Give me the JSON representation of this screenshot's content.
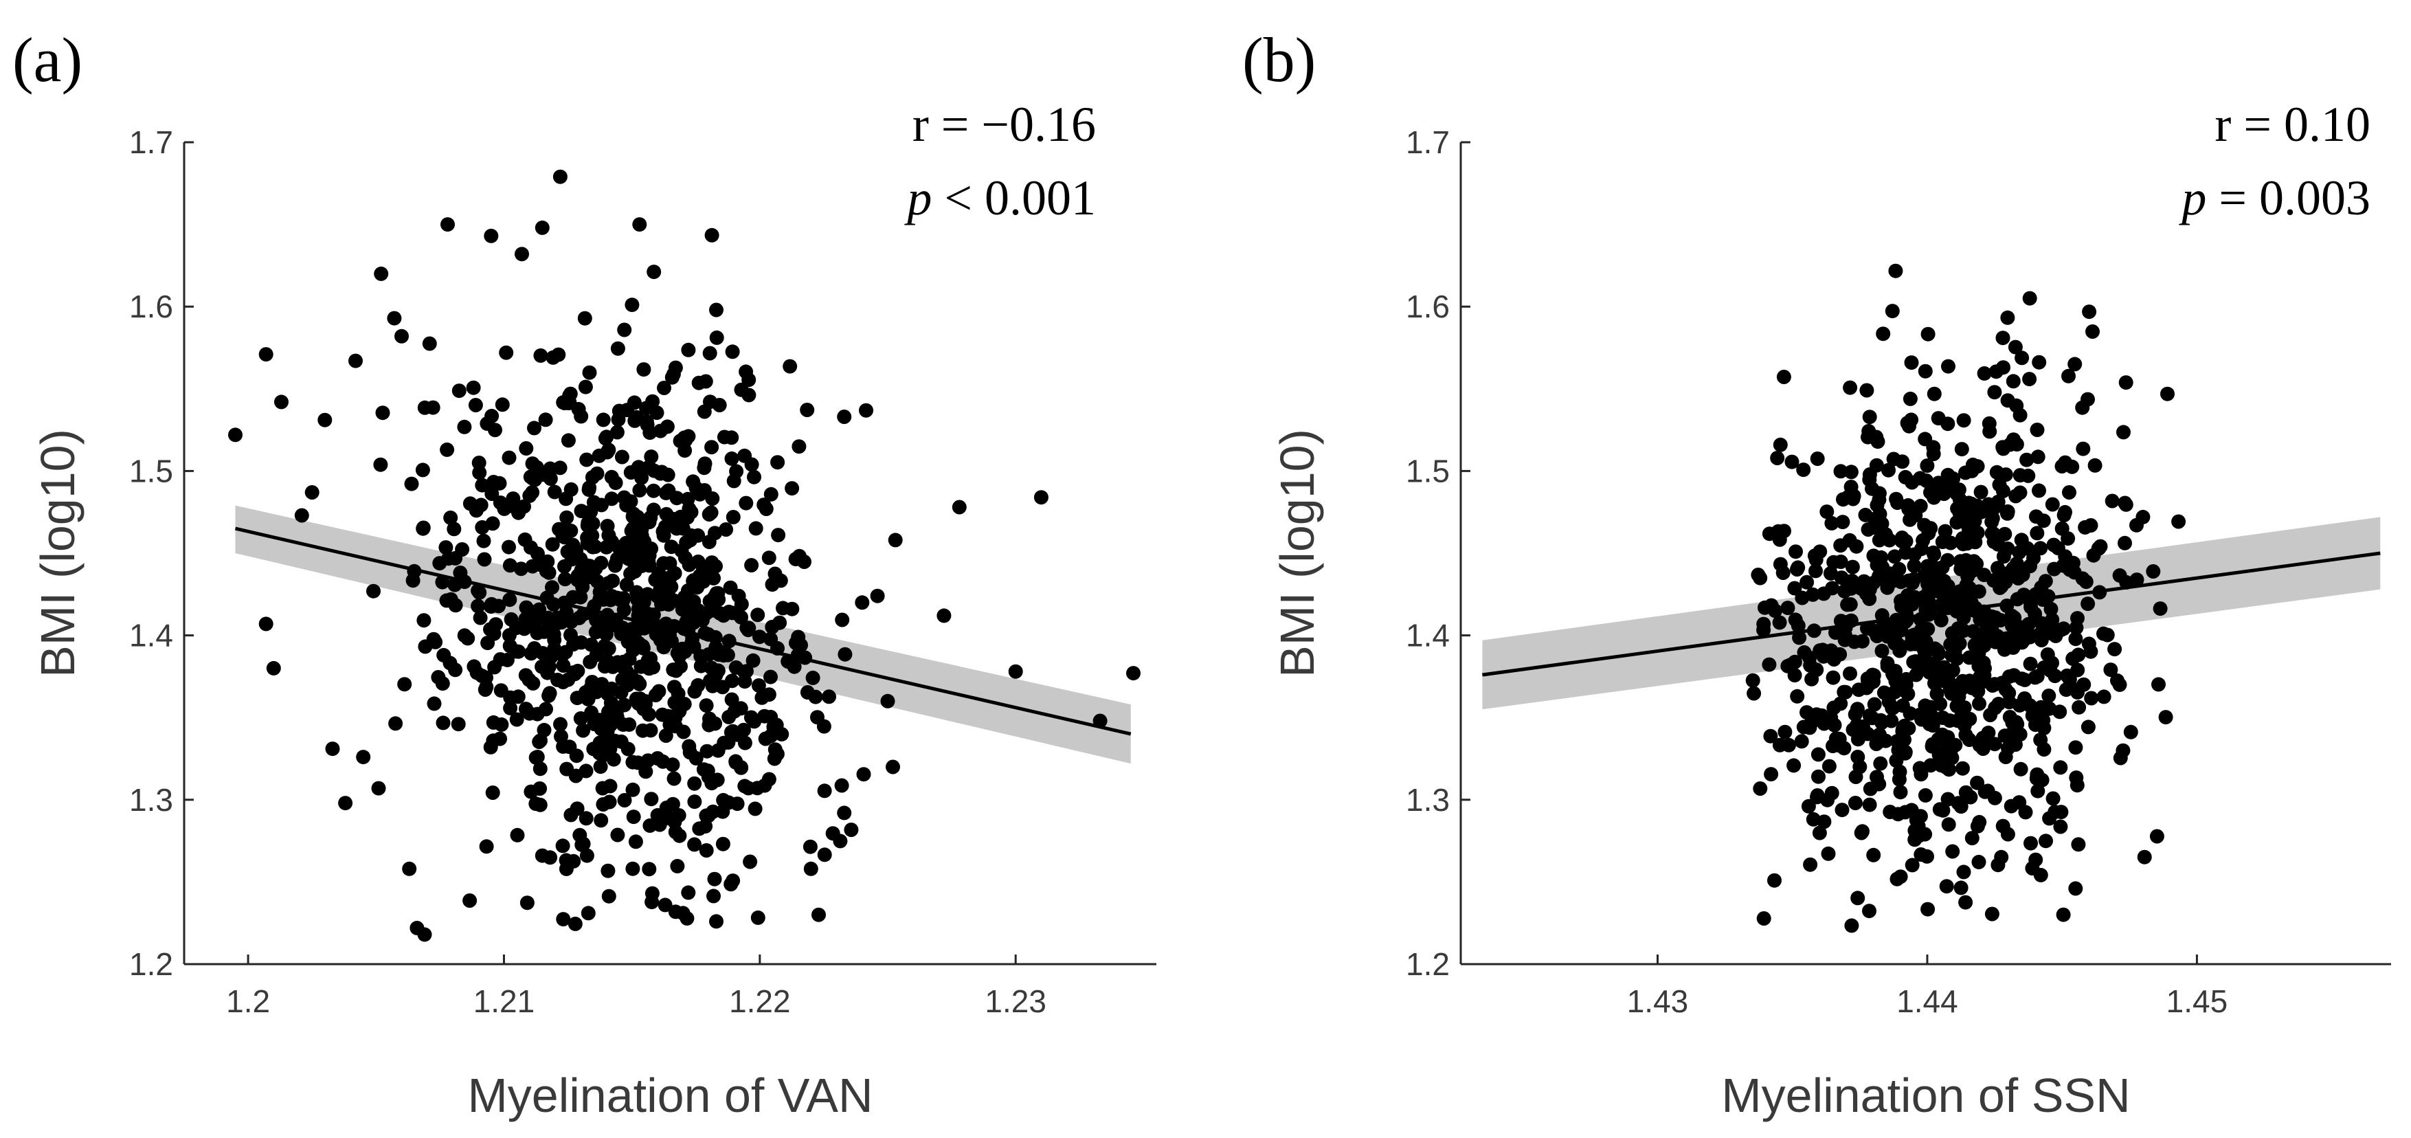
{
  "chart_data": [
    {
      "type": "scatter",
      "panel_label": "(a)",
      "xlabel": "Myelination of VAN",
      "ylabel": "BMI (log10)",
      "xlim": [
        1.1975,
        1.2355
      ],
      "ylim": [
        1.2,
        1.7
      ],
      "xticks": [
        1.2,
        1.21,
        1.22,
        1.23
      ],
      "xtick_labels": [
        "1.2",
        "1.21",
        "1.22",
        "1.23"
      ],
      "yticks": [
        1.2,
        1.3,
        1.4,
        1.5,
        1.6,
        1.7
      ],
      "ytick_labels": [
        "1.2",
        "1.3",
        "1.4",
        "1.5",
        "1.6",
        "1.7"
      ],
      "stats": {
        "r_text": "r = −0.16",
        "p_symbol": "p",
        "p_text": " < 0.001"
      },
      "fit": {
        "x": [
          1.1995,
          1.2345
        ],
        "y": [
          1.465,
          1.34
        ],
        "ci_lower": [
          1.45,
          1.322
        ],
        "ci_upper": [
          1.479,
          1.358
        ]
      },
      "cloud": {
        "n": 860,
        "seed": 17,
        "x_mean": 1.2145,
        "x_sd": 0.0038,
        "y_mean": 1.409,
        "y_sd": 0.077,
        "slope": -3.57,
        "x_range": [
          1.2035,
          1.2245
        ],
        "y_range": [
          1.22,
          1.665
        ]
      },
      "points": [
        [
          1.1995,
          1.522
        ],
        [
          1.2007,
          1.571
        ],
        [
          1.2013,
          1.542
        ],
        [
          1.2007,
          1.407
        ],
        [
          1.201,
          1.38
        ],
        [
          1.2025,
          1.487
        ],
        [
          1.203,
          1.531
        ],
        [
          1.2033,
          1.331
        ],
        [
          1.2038,
          1.298
        ],
        [
          1.2042,
          1.567
        ],
        [
          1.2052,
          1.62
        ],
        [
          1.206,
          1.582
        ],
        [
          1.2063,
          1.258
        ],
        [
          1.2066,
          1.222
        ],
        [
          1.2069,
          1.218
        ],
        [
          1.2078,
          1.65
        ],
        [
          1.2095,
          1.643
        ],
        [
          1.2107,
          1.632
        ],
        [
          1.2115,
          1.648
        ],
        [
          1.2122,
          1.679
        ],
        [
          1.2133,
          1.231
        ],
        [
          1.2153,
          1.65
        ],
        [
          1.2158,
          1.243
        ],
        [
          1.2183,
          1.226
        ],
        [
          1.2183,
          1.598
        ],
        [
          1.2223,
          1.23
        ],
        [
          1.222,
          1.258
        ],
        [
          1.2233,
          1.292
        ],
        [
          1.2233,
          1.533
        ],
        [
          1.2253,
          1.458
        ],
        [
          1.225,
          1.36
        ],
        [
          1.2252,
          1.32
        ],
        [
          1.2272,
          1.412
        ],
        [
          1.2278,
          1.478
        ],
        [
          1.23,
          1.378
        ],
        [
          1.231,
          1.484
        ],
        [
          1.2333,
          1.348
        ],
        [
          1.2346,
          1.377
        ],
        [
          1.224,
          1.42
        ],
        [
          1.2246,
          1.424
        ],
        [
          1.2215,
          1.399
        ],
        [
          1.217,
          1.231
        ],
        [
          1.2163,
          1.236
        ],
        [
          1.2115,
          1.266
        ],
        [
          1.2123,
          1.272
        ],
        [
          1.2045,
          1.326
        ],
        [
          1.2051,
          1.307
        ],
        [
          1.2021,
          1.473
        ]
      ]
    },
    {
      "type": "scatter",
      "panel_label": "(b)",
      "xlabel": "Myelination of SSN",
      "ylabel": "BMI (log10)",
      "xlim": [
        1.4227,
        1.4572
      ],
      "ylim": [
        1.2,
        1.7
      ],
      "xticks": [
        1.43,
        1.44,
        1.45
      ],
      "xtick_labels": [
        "1.43",
        "1.44",
        "1.45"
      ],
      "yticks": [
        1.2,
        1.3,
        1.4,
        1.5,
        1.6,
        1.7
      ],
      "ytick_labels": [
        "1.2",
        "1.3",
        "1.4",
        "1.5",
        "1.6",
        "1.7"
      ],
      "stats": {
        "r_text": "r = 0.10",
        "p_symbol": "p",
        "p_text": " = 0.003"
      },
      "fit": {
        "x": [
          1.4235,
          1.4568
        ],
        "y": [
          1.376,
          1.45
        ],
        "ci_lower": [
          1.355,
          1.428
        ],
        "ci_upper": [
          1.397,
          1.472
        ]
      },
      "cloud": {
        "n": 860,
        "seed": 41,
        "x_mean": 1.4408,
        "x_sd": 0.0033,
        "y_mean": 1.405,
        "y_sd": 0.077,
        "slope": 2.0,
        "x_range": [
          1.4335,
          1.4495
        ],
        "y_range": [
          1.22,
          1.665
        ]
      }
    }
  ]
}
